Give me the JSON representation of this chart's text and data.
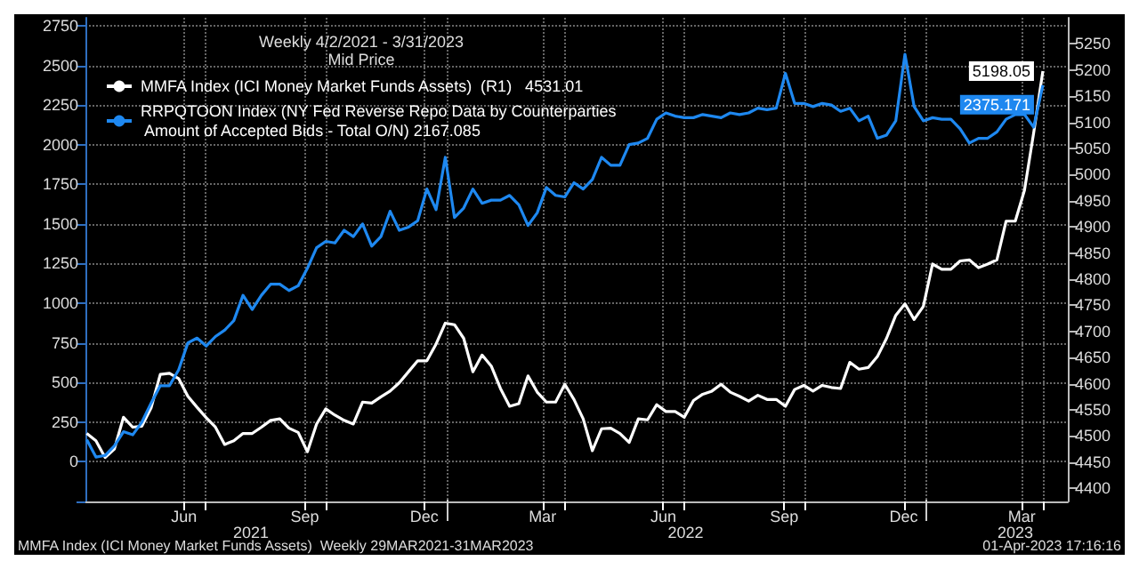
{
  "chart_data": {
    "type": "line",
    "title": "Weekly 4/2/2021 - 3/31/2023",
    "subtitle": "Mid Price",
    "x": [
      "2021-04-02",
      "2021-04-09",
      "2021-04-16",
      "2021-04-23",
      "2021-04-30",
      "2021-05-07",
      "2021-05-14",
      "2021-05-21",
      "2021-05-28",
      "2021-06-04",
      "2021-06-11",
      "2021-06-18",
      "2021-06-25",
      "2021-07-02",
      "2021-07-09",
      "2021-07-16",
      "2021-07-23",
      "2021-07-30",
      "2021-08-06",
      "2021-08-13",
      "2021-08-20",
      "2021-08-27",
      "2021-09-03",
      "2021-09-10",
      "2021-09-17",
      "2021-09-24",
      "2021-10-01",
      "2021-10-08",
      "2021-10-15",
      "2021-10-22",
      "2021-10-29",
      "2021-11-05",
      "2021-11-12",
      "2021-11-19",
      "2021-11-26",
      "2021-12-03",
      "2021-12-10",
      "2021-12-17",
      "2021-12-24",
      "2021-12-31",
      "2022-01-07",
      "2022-01-14",
      "2022-01-21",
      "2022-01-28",
      "2022-02-04",
      "2022-02-11",
      "2022-02-18",
      "2022-02-25",
      "2022-03-04",
      "2022-03-11",
      "2022-03-18",
      "2022-03-25",
      "2022-04-01",
      "2022-04-08",
      "2022-04-15",
      "2022-04-22",
      "2022-04-29",
      "2022-05-06",
      "2022-05-13",
      "2022-05-20",
      "2022-05-27",
      "2022-06-03",
      "2022-06-10",
      "2022-06-17",
      "2022-06-24",
      "2022-07-01",
      "2022-07-08",
      "2022-07-15",
      "2022-07-22",
      "2022-07-29",
      "2022-08-05",
      "2022-08-12",
      "2022-08-19",
      "2022-08-26",
      "2022-09-02",
      "2022-09-09",
      "2022-09-16",
      "2022-09-23",
      "2022-09-30",
      "2022-10-07",
      "2022-10-14",
      "2022-10-21",
      "2022-10-28",
      "2022-11-04",
      "2022-11-11",
      "2022-11-18",
      "2022-11-25",
      "2022-12-02",
      "2022-12-09",
      "2022-12-16",
      "2022-12-23",
      "2022-12-30",
      "2023-01-06",
      "2023-01-13",
      "2023-01-20",
      "2023-01-27",
      "2023-02-03",
      "2023-02-10",
      "2023-02-17",
      "2023-02-24",
      "2023-03-03",
      "2023-03-10",
      "2023-03-17",
      "2023-03-24",
      "2023-03-31"
    ],
    "series": [
      {
        "name": "MMFA Index (ICI Money Market Funds Assets)  (R1)   4531.01",
        "color": "#ffffff",
        "axis": "y2",
        "values": [
          4505,
          4491,
          4459,
          4475,
          4536,
          4517,
          4519,
          4554,
          4618,
          4620,
          4610,
          4576,
          4555,
          4535,
          4517,
          4484,
          4491,
          4505,
          4505,
          4517,
          4530,
          4533,
          4515,
          4507,
          4470,
          4523,
          4552,
          4540,
          4530,
          4523,
          4565,
          4563,
          4575,
          4586,
          4602,
          4623,
          4644,
          4644,
          4676,
          4716,
          4713,
          4687,
          4623,
          4655,
          4634,
          4591,
          4557,
          4562,
          4615,
          4584,
          4565,
          4565,
          4599,
          4570,
          4533,
          4472,
          4514,
          4515,
          4505,
          4488,
          4533,
          4531,
          4560,
          4547,
          4547,
          4536,
          4568,
          4580,
          4586,
          4599,
          4584,
          4576,
          4567,
          4578,
          4570,
          4570,
          4557,
          4589,
          4597,
          4586,
          4597,
          4593,
          4591,
          4641,
          4628,
          4631,
          4652,
          4687,
          4731,
          4753,
          4723,
          4748,
          4829,
          4819,
          4819,
          4835,
          4837,
          4822,
          4829,
          4837,
          4911,
          4911,
          4970,
          5080,
          5198.05
        ],
        "value_labels": [
          null,
          null,
          null,
          null,
          null,
          null,
          null,
          null,
          null,
          null,
          null,
          null,
          null,
          null,
          null,
          null,
          null,
          null,
          null,
          null,
          null,
          null,
          null,
          null,
          null,
          null,
          null,
          null,
          null,
          null,
          null,
          null,
          null,
          null,
          null,
          null,
          null,
          null,
          null,
          null,
          null,
          null,
          null,
          null,
          null,
          null,
          null,
          null,
          null,
          null,
          null,
          null,
          null,
          null,
          null,
          null,
          null,
          null,
          null,
          null,
          null,
          null,
          null,
          null,
          null,
          null,
          null,
          null,
          null,
          null,
          null,
          null,
          null,
          null,
          null,
          null,
          null,
          null,
          null,
          null,
          null,
          null,
          null,
          null,
          null,
          null,
          null,
          null,
          null,
          null,
          null,
          null,
          null,
          null,
          null,
          null,
          null,
          null,
          null,
          null,
          null,
          null,
          null,
          null,
          "5198.05"
        ]
      },
      {
        "name": "RRPQTOON Index (NY Fed Reverse Repo Data by Counterparties Amount of Accepted Bids - Total O/N) 2167.085",
        "color": "#1e88f0",
        "axis": "y",
        "values": [
          140,
          30,
          40,
          100,
          190,
          170,
          250,
          370,
          480,
          480,
          580,
          750,
          780,
          730,
          790,
          830,
          890,
          1050,
          960,
          1050,
          1120,
          1120,
          1080,
          1110,
          1220,
          1350,
          1390,
          1380,
          1460,
          1420,
          1500,
          1360,
          1420,
          1580,
          1460,
          1480,
          1520,
          1720,
          1590,
          1920,
          1540,
          1600,
          1720,
          1630,
          1650,
          1650,
          1680,
          1620,
          1490,
          1570,
          1730,
          1680,
          1670,
          1760,
          1720,
          1780,
          1920,
          1870,
          1870,
          2000,
          2010,
          2040,
          2160,
          2200,
          2180,
          2170,
          2170,
          2190,
          2180,
          2170,
          2200,
          2190,
          2200,
          2230,
          2220,
          2230,
          2450,
          2260,
          2260,
          2240,
          2260,
          2250,
          2210,
          2230,
          2150,
          2180,
          2040,
          2060,
          2150,
          2570,
          2240,
          2150,
          2170,
          2160,
          2160,
          2100,
          2010,
          2040,
          2040,
          2080,
          2160,
          2190,
          2190,
          2110,
          2375.171
        ],
        "value_labels": [
          null,
          null,
          null,
          null,
          null,
          null,
          null,
          null,
          null,
          null,
          null,
          null,
          null,
          null,
          null,
          null,
          null,
          null,
          null,
          null,
          null,
          null,
          null,
          null,
          null,
          null,
          null,
          null,
          null,
          null,
          null,
          null,
          null,
          null,
          null,
          null,
          null,
          null,
          null,
          null,
          null,
          null,
          null,
          null,
          null,
          null,
          null,
          null,
          null,
          null,
          null,
          null,
          null,
          null,
          null,
          null,
          null,
          null,
          null,
          null,
          null,
          null,
          null,
          null,
          null,
          null,
          null,
          null,
          null,
          null,
          null,
          null,
          null,
          null,
          null,
          null,
          null,
          null,
          null,
          null,
          null,
          null,
          null,
          null,
          null,
          null,
          null,
          null,
          null,
          null,
          null,
          null,
          null,
          null,
          null,
          null,
          null,
          null,
          null,
          null,
          null,
          null,
          null,
          null,
          "2375.171"
        ]
      }
    ],
    "xlim": [
      "2021-04-01",
      "2023-04-19"
    ],
    "xticks": [
      {
        "value": "2021-06-15",
        "label": "Jun"
      },
      {
        "value": "2021-07-01",
        "label": null
      },
      {
        "value": "2021-09-15",
        "label": "Sep"
      },
      {
        "value": "2021-10-01",
        "label": null
      },
      {
        "value": "2021-12-15",
        "label": "Dec"
      },
      {
        "value": "2022-01-01",
        "label": null
      },
      {
        "value": "2022-03-15",
        "label": "Mar"
      },
      {
        "value": "2022-04-01",
        "label": null
      },
      {
        "value": "2022-06-15",
        "label": "Jun"
      },
      {
        "value": "2022-07-01",
        "label": null
      },
      {
        "value": "2022-09-15",
        "label": "Sep"
      },
      {
        "value": "2022-10-01",
        "label": null
      },
      {
        "value": "2022-12-15",
        "label": "Dec"
      },
      {
        "value": "2023-01-01",
        "label": null
      },
      {
        "value": "2023-03-15",
        "label": "Mar"
      },
      {
        "value": "2023-04-01",
        "label": null
      }
    ],
    "x2lim": [
      "2021-04-01",
      "2023-04-19"
    ],
    "x2ticks": [
      {
        "value": "2021-08-05",
        "label": "2021"
      },
      {
        "value": "2022-01-01",
        "label": null
      },
      {
        "value": "2022-07-02",
        "label": "2022"
      },
      {
        "value": "2023-01-01",
        "label": null
      },
      {
        "value": "2023-03-10",
        "label": "2023"
      }
    ],
    "ylim": [
      -250,
      2800
    ],
    "yticks": [
      {
        "value": -250,
        "label": null
      },
      0,
      250,
      500,
      750,
      1000,
      1250,
      1500,
      1750,
      2000,
      2250,
      2500,
      2750
    ],
    "y2lim": [
      4375,
      5300
    ],
    "y2ticks": [
      4400,
      4450,
      4500,
      4550,
      4600,
      4650,
      4700,
      4750,
      4800,
      4850,
      4900,
      4950,
      5000,
      5050,
      5100,
      5150,
      5200,
      5250
    ],
    "grid": true,
    "legend": "top left",
    "annotations": [
      "MMFA Index (ICI Money Market Funds Assets)  Weekly 29MAR2021-31MAR2023",
      "01-Apr-2023 17:16:16"
    ]
  }
}
